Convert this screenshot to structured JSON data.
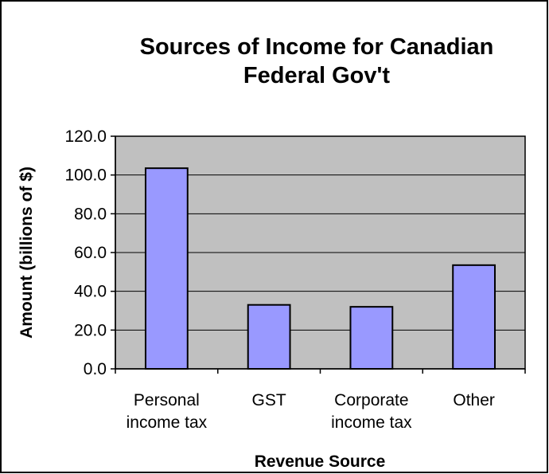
{
  "chart_data": {
    "type": "bar",
    "title_lines": [
      "Sources of Income for Canadian",
      "Federal Gov't"
    ],
    "xlabel": "Revenue Source",
    "ylabel": "Amount (billions of $)",
    "categories": [
      [
        "Personal",
        "income tax"
      ],
      [
        "GST"
      ],
      [
        "Corporate",
        "income tax"
      ],
      [
        "Other"
      ]
    ],
    "values": [
      103.5,
      33.0,
      32.0,
      53.5
    ],
    "ylim": [
      0,
      120
    ],
    "yticks": [
      "0.0",
      "20.0",
      "40.0",
      "60.0",
      "80.0",
      "100.0",
      "120.0"
    ],
    "ytick_values": [
      0,
      20,
      40,
      60,
      80,
      100,
      120
    ],
    "grid": true,
    "legend": "none",
    "colors": {
      "bar_fill": "#9999ff",
      "bar_stroke": "#000000",
      "plot_background": "#c0c0c0",
      "gridline": "#000000",
      "frame": "#000000"
    }
  }
}
